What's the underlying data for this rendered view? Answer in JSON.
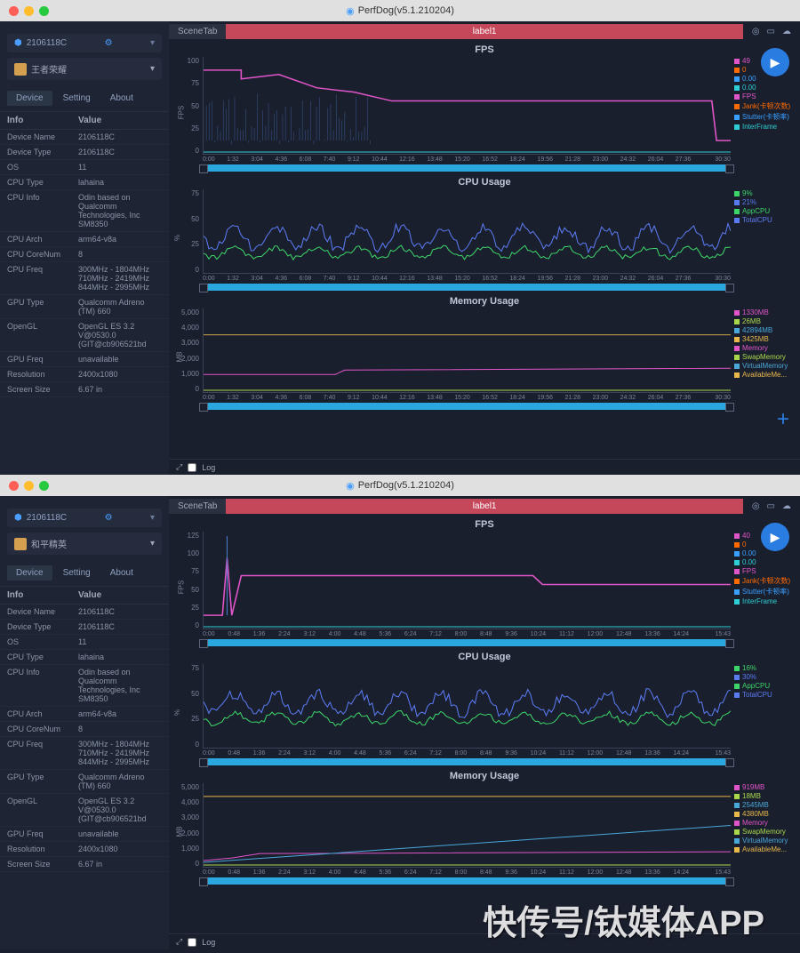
{
  "window": {
    "title": "PerfDog(v5.1.210204)"
  },
  "scene": {
    "tab": "SceneTab",
    "label": "label1"
  },
  "instance1": {
    "device_id": "2106118C",
    "app_name": "王者荣耀",
    "tabs": [
      "Device",
      "Setting",
      "About"
    ],
    "info_header": [
      "Info",
      "Value"
    ],
    "info_rows": [
      [
        "Device Name",
        "2106118C"
      ],
      [
        "Device Type",
        "2106118C"
      ],
      [
        "OS",
        "11"
      ],
      [
        "CPU Type",
        "lahaina"
      ],
      [
        "CPU Info",
        "Odin based on Qualcomm Technologies, Inc SM8350"
      ],
      [
        "CPU Arch",
        "arm64-v8a"
      ],
      [
        "CPU CoreNum",
        "8"
      ],
      [
        "CPU Freq",
        "300MHz - 1804MHz 710MHz - 2419MHz 844MHz - 2995MHz"
      ],
      [
        "GPU Type",
        "Qualcomm Adreno (TM) 660"
      ],
      [
        "OpenGL",
        "OpenGL ES 3.2 V@0530.0 (GIT@cb906521bd"
      ],
      [
        "GPU Freq",
        "unavailable"
      ],
      [
        "Resolution",
        "2400x1080"
      ],
      [
        "Screen Size",
        "6.67 in"
      ]
    ],
    "fps": {
      "title": "FPS",
      "ylabel": "FPS",
      "yticks": [
        "100",
        "75",
        "50",
        "25",
        "0"
      ],
      "xticks": [
        "0:00",
        "1:32",
        "3:04",
        "4:36",
        "6:08",
        "7:40",
        "9:12",
        "10:44",
        "12:16",
        "13:48",
        "15:20",
        "16:52",
        "18:24",
        "19:56",
        "21:28",
        "23:00",
        "24:32",
        "26:04",
        "27:36",
        "",
        "30:30"
      ],
      "legend": [
        {
          "val": "49",
          "color": "#e055c8"
        },
        {
          "val": "0",
          "color": "#ff6a00"
        },
        {
          "val": "0.00",
          "color": "#3aa0ff"
        },
        {
          "val": "0.00",
          "color": "#2ecfd4"
        },
        {
          "label": "FPS",
          "color": "#e055c8"
        },
        {
          "label": "Jank(卡顿次数)",
          "color": "#ff6a00"
        },
        {
          "label": "Stutter(卡顿率)",
          "color": "#3aa0ff"
        },
        {
          "label": "InterFrame",
          "color": "#2ecfd4"
        }
      ],
      "line_color": "#e055c8"
    },
    "cpu": {
      "title": "CPU Usage",
      "ylabel": "%",
      "yticks": [
        "75",
        "50",
        "25",
        "0"
      ],
      "legend": [
        {
          "val": "9%",
          "color": "#3dd468"
        },
        {
          "val": "21%",
          "color": "#5a7af0"
        },
        {
          "label": "AppCPU",
          "color": "#3dd468"
        },
        {
          "label": "TotalCPU",
          "color": "#5a7af0"
        }
      ],
      "colors": [
        "#3dd468",
        "#5a7af0"
      ]
    },
    "mem": {
      "title": "Memory Usage",
      "ylabel": "MB",
      "yticks": [
        "5,000",
        "4,000",
        "3,000",
        "2,000",
        "1,000",
        "0"
      ],
      "legend": [
        {
          "val": "1330MB",
          "color": "#e055c8"
        },
        {
          "val": "26MB",
          "color": "#a8d84a"
        },
        {
          "val": "42894MB",
          "color": "#4aa8d8"
        },
        {
          "val": "3425MB",
          "color": "#e8b84a"
        },
        {
          "label": "Memory",
          "color": "#e055c8"
        },
        {
          "label": "SwapMemory",
          "color": "#a8d84a"
        },
        {
          "label": "VirtualMemory",
          "color": "#4aa8d8"
        },
        {
          "label": "AvailableMe...",
          "color": "#e8b84a"
        }
      ]
    }
  },
  "instance2": {
    "device_id": "2106118C",
    "app_name": "和平精英",
    "tabs": [
      "Device",
      "Setting",
      "About"
    ],
    "info_header": [
      "Info",
      "Value"
    ],
    "info_rows": [
      [
        "Device Name",
        "2106118C"
      ],
      [
        "Device Type",
        "2106118C"
      ],
      [
        "OS",
        "11"
      ],
      [
        "CPU Type",
        "lahaina"
      ],
      [
        "CPU Info",
        "Odin based on Qualcomm Technologies, Inc SM8350"
      ],
      [
        "CPU Arch",
        "arm64-v8a"
      ],
      [
        "CPU CoreNum",
        "8"
      ],
      [
        "CPU Freq",
        "300MHz - 1804MHz 710MHz - 2419MHz 844MHz - 2995MHz"
      ],
      [
        "GPU Type",
        "Qualcomm Adreno (TM) 660"
      ],
      [
        "OpenGL",
        "OpenGL ES 3.2 V@0530.0 (GIT@cb906521bd"
      ],
      [
        "GPU Freq",
        "unavailable"
      ],
      [
        "Resolution",
        "2400x1080"
      ],
      [
        "Screen Size",
        "6.67 in"
      ]
    ],
    "fps": {
      "title": "FPS",
      "ylabel": "FPS",
      "yticks": [
        "125",
        "100",
        "75",
        "50",
        "25",
        "0"
      ],
      "xticks": [
        "0:00",
        "0:48",
        "1:36",
        "2:24",
        "3:12",
        "4:00",
        "4:48",
        "5:36",
        "6:24",
        "7:12",
        "8:00",
        "8:48",
        "9:36",
        "10:24",
        "11:12",
        "12:00",
        "12:48",
        "13:36",
        "14:24",
        "",
        "15:43"
      ],
      "legend": [
        {
          "val": "40",
          "color": "#e055c8"
        },
        {
          "val": "0",
          "color": "#ff6a00"
        },
        {
          "val": "0.00",
          "color": "#3aa0ff"
        },
        {
          "val": "0.00",
          "color": "#2ecfd4"
        },
        {
          "label": "FPS",
          "color": "#e055c8"
        },
        {
          "label": "Jank(卡顿次数)",
          "color": "#ff6a00"
        },
        {
          "label": "Stutter(卡顿率)",
          "color": "#3aa0ff"
        },
        {
          "label": "InterFrame",
          "color": "#2ecfd4"
        }
      ]
    },
    "cpu": {
      "title": "CPU Usage",
      "ylabel": "%",
      "yticks": [
        "75",
        "50",
        "25",
        "0"
      ],
      "legend": [
        {
          "val": "16%",
          "color": "#3dd468"
        },
        {
          "val": "30%",
          "color": "#5a7af0"
        },
        {
          "label": "AppCPU",
          "color": "#3dd468"
        },
        {
          "label": "TotalCPU",
          "color": "#5a7af0"
        }
      ]
    },
    "mem": {
      "title": "Memory Usage",
      "ylabel": "MB",
      "yticks": [
        "5,000",
        "4,000",
        "3,000",
        "2,000",
        "1,000",
        "0"
      ],
      "legend": [
        {
          "val": "919MB",
          "color": "#e055c8"
        },
        {
          "val": "18MB",
          "color": "#a8d84a"
        },
        {
          "val": "2545MB",
          "color": "#4aa8d8"
        },
        {
          "val": "4380MB",
          "color": "#e8b84a"
        },
        {
          "label": "Memory",
          "color": "#e055c8"
        },
        {
          "label": "SwapMemory",
          "color": "#a8d84a"
        },
        {
          "label": "VirtualMemory",
          "color": "#4aa8d8"
        },
        {
          "label": "AvailableMe...",
          "color": "#e8b84a"
        }
      ]
    }
  },
  "footer": {
    "log": "Log"
  },
  "watermark": "快传号/钛媒体APP"
}
